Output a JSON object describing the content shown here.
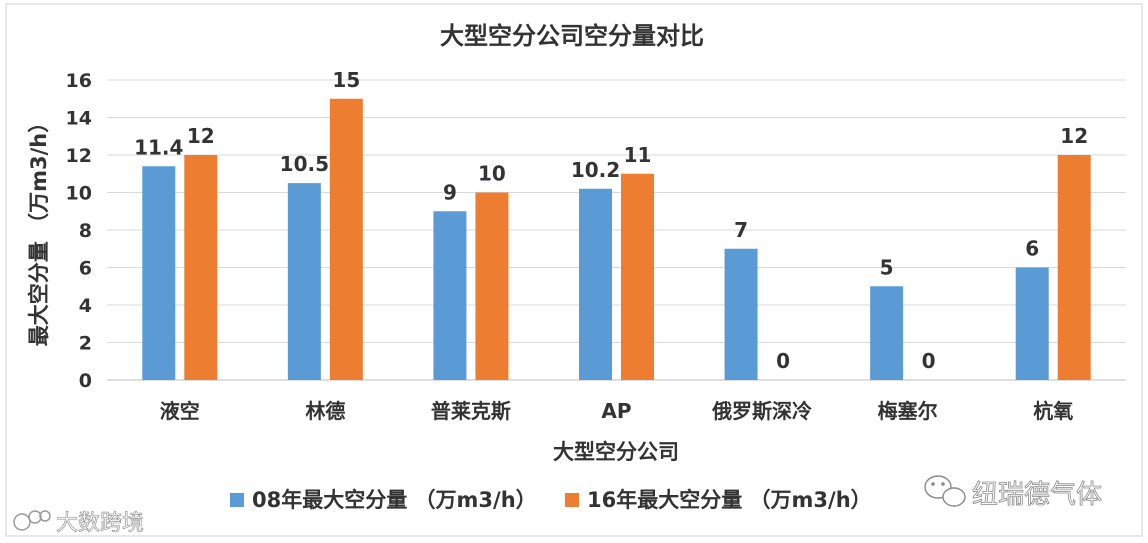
{
  "chart_data": {
    "type": "bar",
    "title": "大型空分公司空分量对比",
    "xlabel": "大型空分公司",
    "ylabel": "最大空分量 （万m3/h）",
    "categories": [
      "液空",
      "林德",
      "普莱克斯",
      "AP",
      "俄罗斯深冷",
      "梅塞尔",
      "杭氧"
    ],
    "series": [
      {
        "name": "08年最大空分量 （万m3/h）",
        "values": [
          11.4,
          10.5,
          9,
          10.2,
          7,
          5,
          6
        ],
        "color": "#5b9bd5"
      },
      {
        "name": "16年最大空分量 （万m3/h）",
        "values": [
          12,
          15,
          10,
          11,
          0,
          0,
          12
        ],
        "color": "#ed7d31"
      }
    ],
    "ylim": [
      0,
      16
    ],
    "yticks": [
      0,
      2,
      4,
      6,
      8,
      10,
      12,
      14,
      16
    ],
    "grid": true,
    "legend_position": "bottom"
  },
  "watermarks": {
    "right": "纽瑞德气体",
    "left": "大数跨境"
  },
  "icons": {
    "right_watermark_icon": "wechat-icon",
    "left_watermark_icon": "logo-icon"
  }
}
